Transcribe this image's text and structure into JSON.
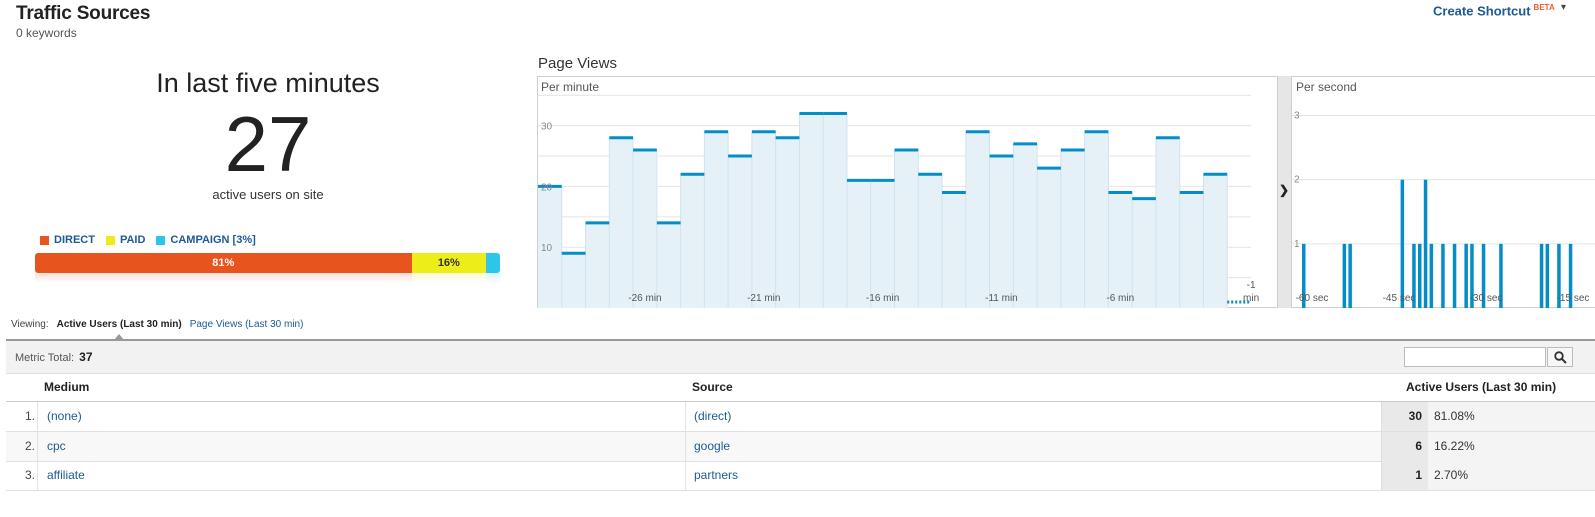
{
  "header": {
    "title": "Traffic Sources",
    "subtitle": "0 keywords",
    "shortcut_label": "Create Shortcut",
    "shortcut_badge": "BETA"
  },
  "summary": {
    "heading": "In last five minutes",
    "active_count": "27",
    "caption": "active users on site",
    "legend": [
      {
        "label": "DIRECT",
        "color": "#e8541e"
      },
      {
        "label": "PAID",
        "color": "#eded1a"
      },
      {
        "label": "CAMPAIGN [3%]",
        "color": "#2ec6e8"
      }
    ],
    "segments": [
      {
        "label": "81%",
        "percent": 81,
        "color": "#e8541e",
        "text_color": "#ffffff"
      },
      {
        "label": "16%",
        "percent": 16,
        "color": "#eded1a",
        "text_color": "#333333"
      },
      {
        "label": "",
        "percent": 3,
        "color": "#2ec6e8",
        "text_color": "#333333"
      }
    ]
  },
  "page_views": {
    "title": "Page Views",
    "per_minute_label": "Per minute",
    "per_second_label": "Per second",
    "expand_icon": "chevron-right-icon"
  },
  "chart_data": [
    {
      "type": "area",
      "title": "Per minute",
      "x": [
        -30,
        -29,
        -28,
        -27,
        -26,
        -25,
        -24,
        -23,
        -22,
        -21,
        -20,
        -19,
        -18,
        -17,
        -16,
        -15,
        -14,
        -13,
        -12,
        -11,
        -10,
        -9,
        -8,
        -7,
        -6,
        -5,
        -4,
        -3,
        -2,
        -1
      ],
      "x_tick_labels": [
        "-26 min",
        "-21 min",
        "-16 min",
        "-11 min",
        "-6 min",
        "-1 min"
      ],
      "x_ticks": [
        -26,
        -21,
        -16,
        -11,
        -6,
        -1
      ],
      "values": [
        20,
        9,
        14,
        28,
        26,
        14,
        22,
        29,
        25,
        29,
        28,
        32,
        32,
        21,
        21,
        26,
        22,
        19,
        29,
        25,
        27,
        23,
        26,
        29,
        19,
        18,
        28,
        19,
        22,
        0
      ],
      "y_ticks": [
        10,
        20,
        30
      ],
      "ylim": [
        0,
        38
      ],
      "color": "#058dc7",
      "fill": "#e5f1f7",
      "grid": true
    },
    {
      "type": "bar",
      "title": "Per second",
      "x": [
        -60,
        -59,
        -58,
        -57,
        -56,
        -55,
        -54,
        -53,
        -52,
        -51,
        -50,
        -49,
        -48,
        -47,
        -46,
        -45,
        -44,
        -43,
        -42,
        -41,
        -40,
        -39,
        -38,
        -37,
        -36,
        -35,
        -34,
        -33,
        -32,
        -31,
        -30,
        -29,
        -28,
        -27,
        -26,
        -25,
        -24,
        -23,
        -22,
        -21,
        -20,
        -19,
        -18,
        -17,
        -16,
        -15,
        -14,
        -13,
        -12,
        -11,
        -10
      ],
      "values": [
        1,
        0,
        0,
        0,
        0,
        0,
        0,
        1,
        1,
        0,
        0,
        0,
        0,
        0,
        0,
        0,
        0,
        2,
        0,
        1,
        1,
        2,
        1,
        0,
        1,
        0,
        1,
        0,
        1,
        1,
        0,
        1,
        0,
        0,
        1,
        0,
        0,
        0,
        0,
        0,
        0,
        1,
        1,
        0,
        1,
        0,
        1,
        0,
        0,
        0,
        0
      ],
      "x_tick_labels": [
        "-60 sec",
        "-45 sec",
        "-30 sec",
        "-15 sec"
      ],
      "x_ticks": [
        -60,
        -45,
        -30,
        -15
      ],
      "y_ticks": [
        1,
        2,
        3
      ],
      "ylim": [
        0,
        3.6
      ],
      "color": "#058dc7",
      "grid": true
    }
  ],
  "viewing": {
    "label": "Viewing:",
    "active_tab": "Active Users (Last 30 min)",
    "other_tab": "Page Views (Last 30 min)"
  },
  "metric": {
    "label": "Metric Total:",
    "value": "37",
    "search_placeholder": ""
  },
  "table": {
    "columns": [
      "Medium",
      "Source",
      "Active Users (Last 30 min)"
    ],
    "rows": [
      {
        "idx": "1.",
        "medium": "(none)",
        "source": "(direct)",
        "users": "30",
        "pct": "81.08%"
      },
      {
        "idx": "2.",
        "medium": "cpc",
        "source": "google",
        "users": "6",
        "pct": "16.22%"
      },
      {
        "idx": "3.",
        "medium": "affiliate",
        "source": "partners",
        "users": "1",
        "pct": "2.70%"
      }
    ]
  }
}
